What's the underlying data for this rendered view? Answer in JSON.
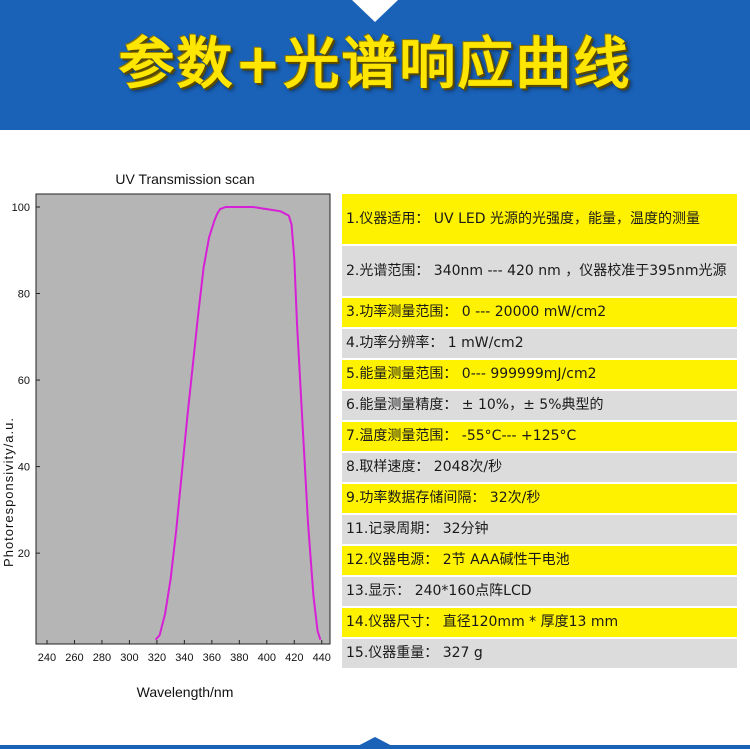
{
  "header": {
    "title": "参数+光谱响应曲线"
  },
  "chart_data": {
    "type": "line",
    "title": "UV Transmission scan",
    "xlabel": "Wavelength/nm",
    "ylabel": "Photoresponsivity/a.u.",
    "xlim": [
      232,
      446
    ],
    "ylim": [
      -1,
      103
    ],
    "xticks": [
      240,
      260,
      280,
      300,
      320,
      340,
      360,
      380,
      400,
      420,
      440
    ],
    "yticks": [
      20,
      40,
      60,
      80,
      100
    ],
    "grid": false,
    "colors": {
      "plot_background": "#b5b5b5",
      "line": "#d61fd6"
    },
    "series": [
      {
        "x": [
          319,
          322,
          326,
          330,
          334,
          338,
          342,
          346,
          350,
          354,
          358,
          362,
          364,
          366,
          370,
          376,
          390,
          400,
          410,
          416,
          418,
          420,
          422,
          426,
          430,
          434,
          437,
          439
        ],
        "y": [
          0,
          1,
          6,
          14,
          25,
          38,
          51,
          63,
          75,
          86,
          93,
          97,
          98.5,
          99.5,
          100,
          100,
          100,
          99.5,
          99,
          98,
          96,
          88,
          73,
          50,
          27,
          10,
          2,
          0
        ]
      }
    ]
  },
  "specs": [
    {
      "text": "1.仪器适用： UV LED 光源的光强度，能量，温度的测量",
      "color": "yellow"
    },
    {
      "text": "2.光谱范围： 340nm --- 420 nm ，仪器校准于395nm光源",
      "color": "gray"
    },
    {
      "text": "3.功率测量范围： 0 --- 20000 mW/cm2",
      "color": "yellow"
    },
    {
      "text": "4.功率分辨率： 1 mW/cm2",
      "color": "gray"
    },
    {
      "text": "5.能量测量范围： 0--- 999999mJ/cm2",
      "color": "yellow"
    },
    {
      "text": "6.能量测量精度： ± 10%，± 5%典型的",
      "color": "gray"
    },
    {
      "text": "7.温度测量范围： -55°C--- +125°C",
      "color": "yellow"
    },
    {
      "text": "8.取样速度： 2048次/秒",
      "color": "gray"
    },
    {
      "text": "9.功率数据存储间隔： 32次/秒",
      "color": "yellow"
    },
    {
      "text": "11.记录周期： 32分钟",
      "color": "gray"
    },
    {
      "text": "12.仪器电源： 2节 AAA碱性干电池",
      "color": "yellow"
    },
    {
      "text": "13.显示： 240*160点阵LCD",
      "color": "gray"
    },
    {
      "text": "14.仪器尺寸： 直径120mm * 厚度13 mm",
      "color": "yellow"
    },
    {
      "text": "15.仪器重量： 327 g",
      "color": "gray"
    }
  ]
}
